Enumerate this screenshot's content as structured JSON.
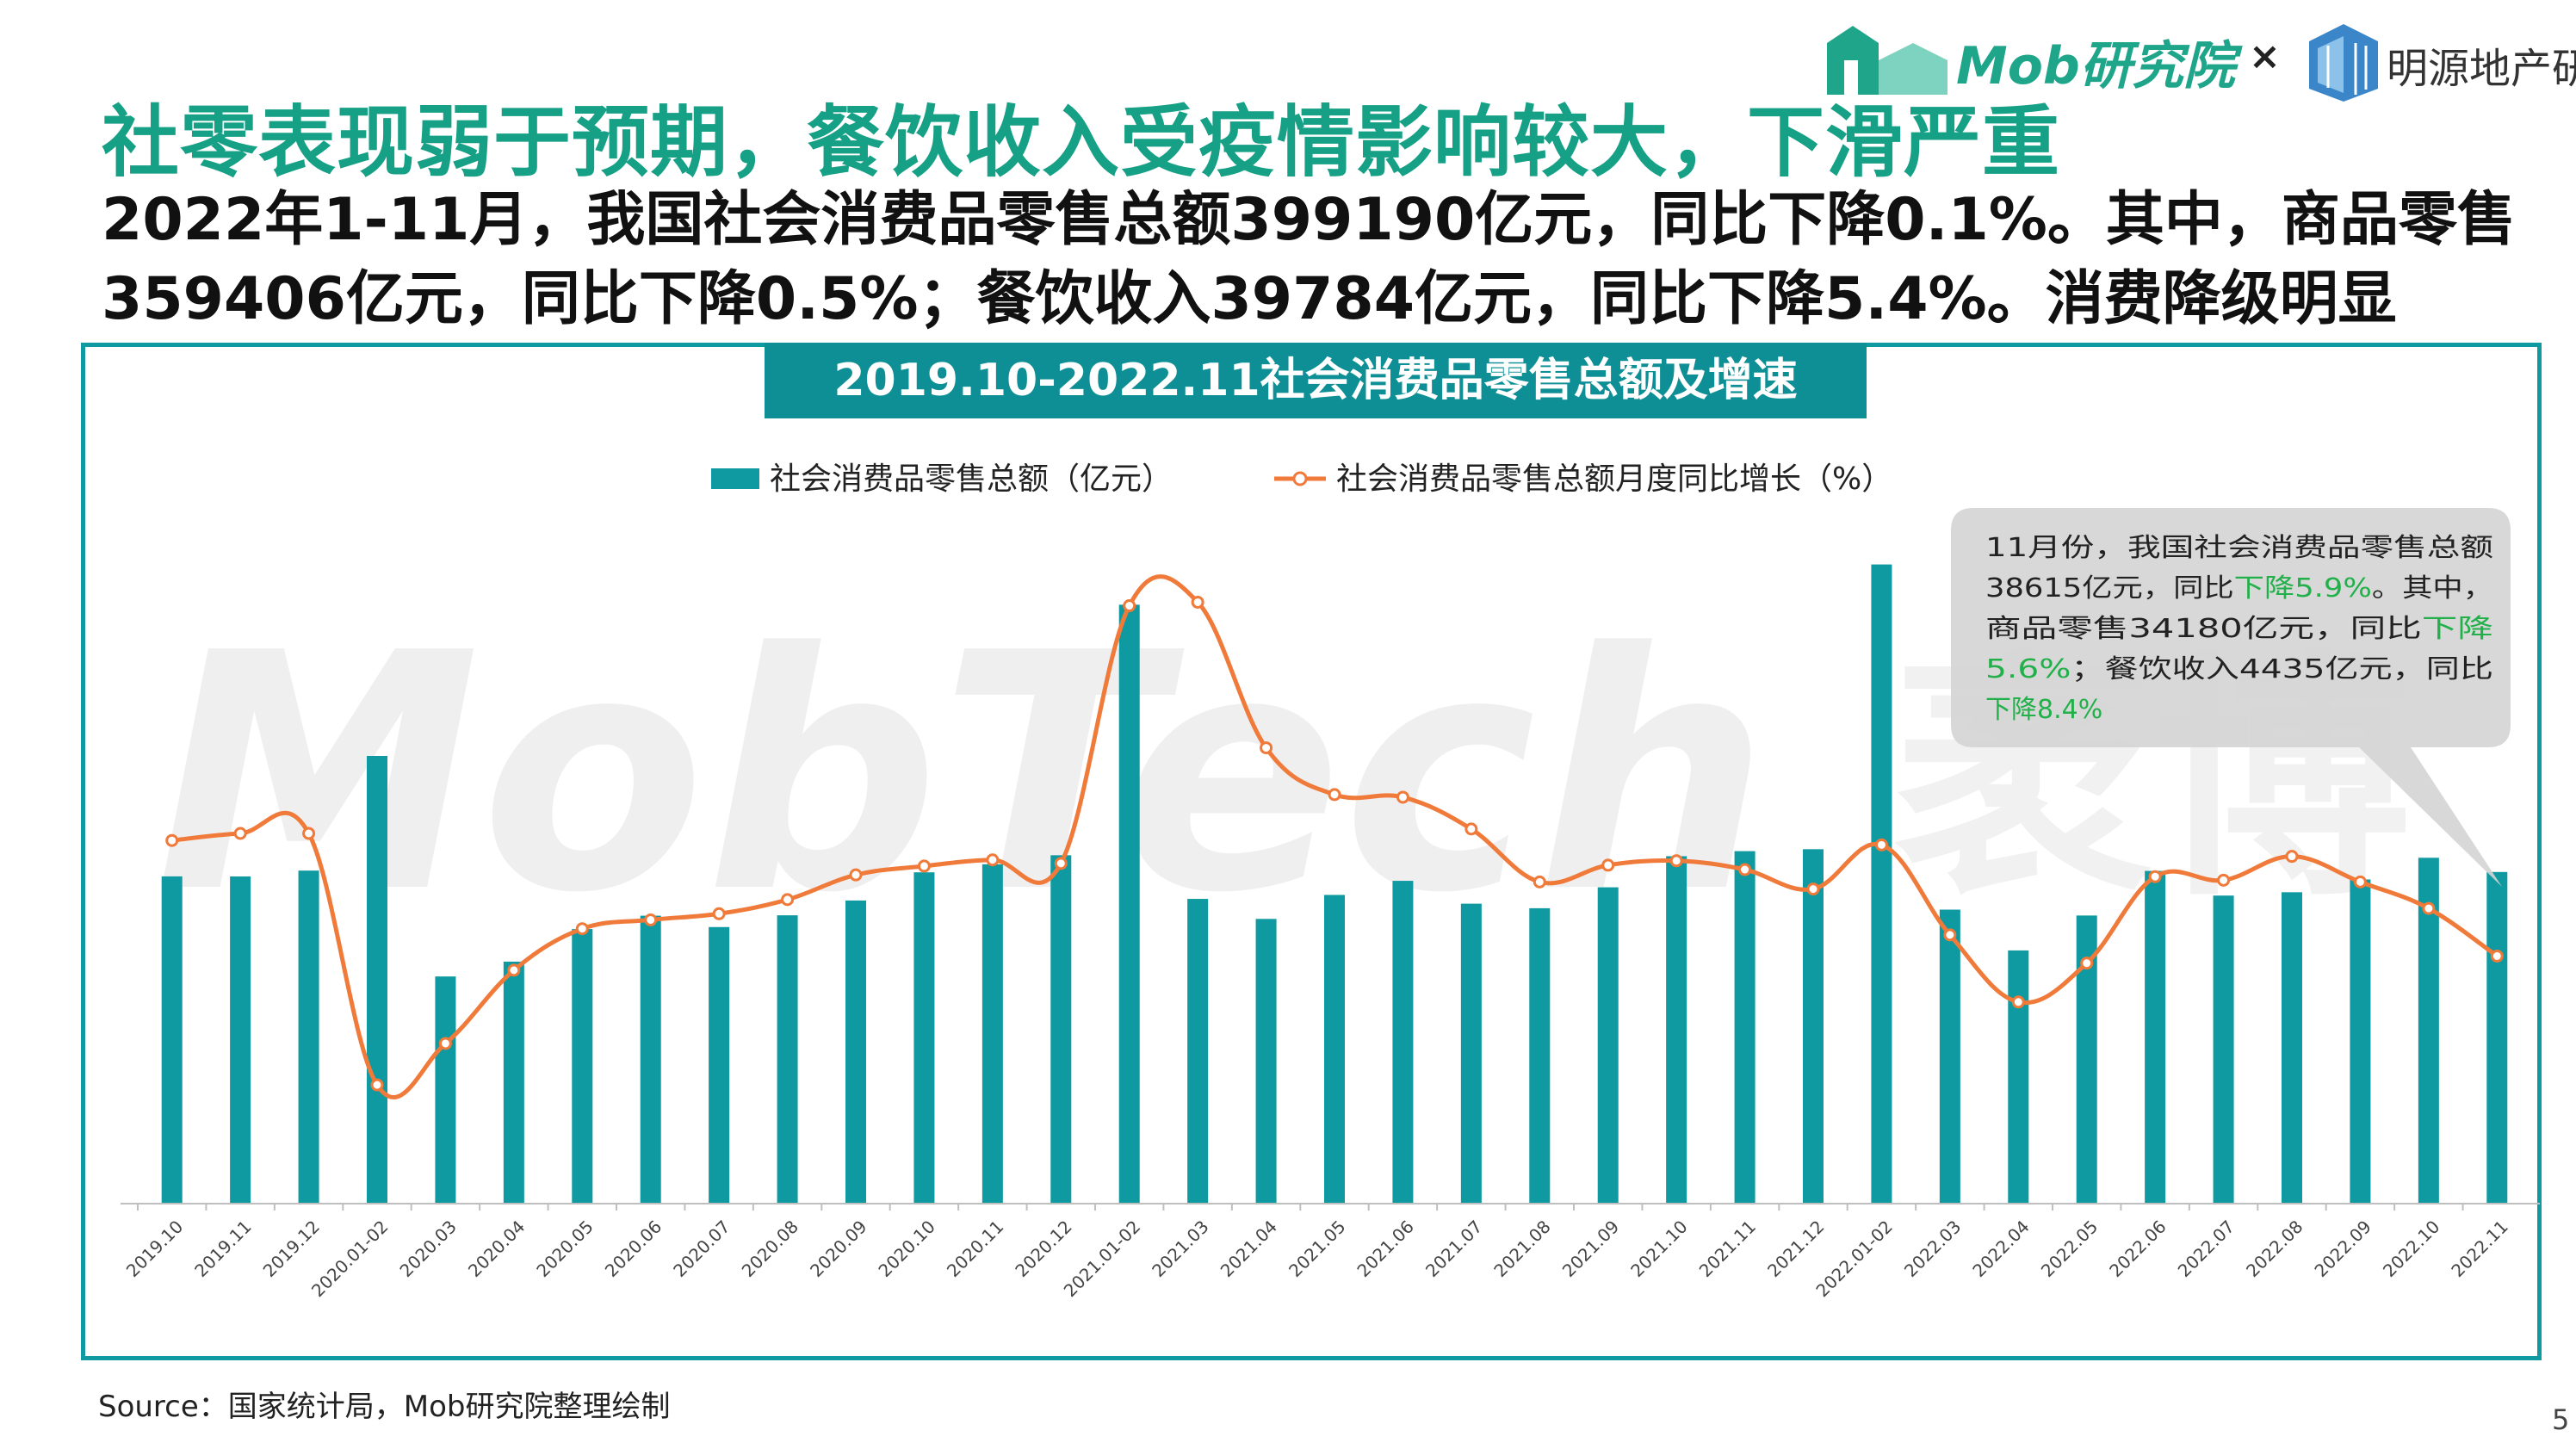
{
  "header": {
    "logo_text": "Mob研究院",
    "separator": "×",
    "partner_text": "明源地产研究院",
    "headline": "社零表现弱于预期，餐饮收入受疫情影响较大，下滑严重",
    "subhead": "2022年1-11月，我国社会消费品零售总额399190亿元，同比下降0.1%。其中，商品零售359406亿元，同比下降0.5%；餐饮收入39784亿元，同比下降5.4%。消费降级明显"
  },
  "footer": {
    "source": "Source：国家统计局，Mob研究院整理绘制",
    "page_number": "5"
  },
  "watermark": {
    "text": "MobTech",
    "text_cn": "袤博"
  },
  "colors": {
    "accent": "#16a085",
    "bar": "#0e9aa0",
    "line": "#f07a3a",
    "frame": "#0e9aa0",
    "callout_green": "#22b04a"
  },
  "chart_data": {
    "type": "bar",
    "title": "2019.10-2022.11社会消费品零售总额及增速",
    "legend_position": "top",
    "grid": false,
    "categories": [
      "2019.10",
      "2019.11",
      "2019.12",
      "2020.01-02",
      "2020.03",
      "2020.04",
      "2020.05",
      "2020.06",
      "2020.07",
      "2020.08",
      "2020.09",
      "2020.10",
      "2020.11",
      "2020.12",
      "2021.01-02",
      "2021.03",
      "2021.04",
      "2021.05",
      "2021.06",
      "2021.07",
      "2021.08",
      "2021.09",
      "2021.10",
      "2021.11",
      "2021.12",
      "2022.01-02",
      "2022.03",
      "2022.04",
      "2022.05",
      "2022.06",
      "2022.07",
      "2022.08",
      "2022.09",
      "2022.10",
      "2022.11"
    ],
    "series": [
      {
        "name": "社会消费品零售总额（亿元）",
        "type": "bar",
        "axis": "left",
        "values": [
          38104,
          38094,
          38777,
          52130,
          26450,
          28178,
          31973,
          33526,
          32203,
          33571,
          35295,
          38576,
          39514,
          40566,
          69737,
          35484,
          33153,
          35945,
          37586,
          34925,
          34395,
          36833,
          40454,
          41043,
          41269,
          74426,
          34233,
          29483,
          33547,
          38742,
          35870,
          36258,
          37745,
          40271,
          38615
        ]
      },
      {
        "name": "社会消费品零售总额月度同比增长（%）",
        "type": "line",
        "axis": "right",
        "values": [
          7.2,
          8.0,
          8.0,
          -20.5,
          -15.8,
          -7.5,
          -2.8,
          -1.8,
          -1.1,
          0.5,
          3.3,
          4.3,
          5.0,
          4.6,
          33.8,
          34.2,
          17.7,
          12.4,
          12.1,
          8.5,
          2.5,
          4.4,
          4.9,
          3.9,
          1.7,
          6.7,
          -3.5,
          -11.1,
          -6.7,
          3.1,
          2.7,
          5.4,
          2.5,
          -0.5,
          -5.9
        ]
      }
    ],
    "ylim_left": [
      0,
      80000
    ],
    "ylim_right": [
      -40,
      40
    ],
    "annotation": {
      "lines": [
        [
          {
            "t": "11月份，我国社会消费品零售总额",
            "hl": false
          }
        ],
        [
          {
            "t": "38615亿元，同比",
            "hl": false
          },
          {
            "t": "下降5.9%",
            "hl": true
          },
          {
            "t": "。其中，",
            "hl": false
          }
        ],
        [
          {
            "t": "商品零售34180亿元，同比",
            "hl": false
          },
          {
            "t": "下降",
            "hl": true
          }
        ],
        [
          {
            "t": "5.6%",
            "hl": true
          },
          {
            "t": "；餐饮收入4435亿元，同比",
            "hl": false
          }
        ],
        [
          {
            "t": "下降8.4%",
            "hl": true
          }
        ]
      ]
    }
  }
}
